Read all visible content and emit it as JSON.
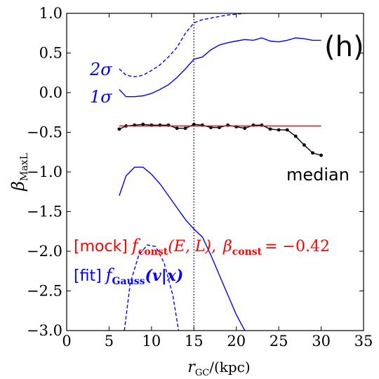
{
  "chart_data": {
    "type": "line",
    "xlabel_main": "r",
    "xlabel_sub": "GC",
    "xlabel_unit": "/(kpc)",
    "ylabel_main": "β",
    "ylabel_sub": "MaxL",
    "xlim": [
      0,
      35
    ],
    "ylim": [
      -3.0,
      1.0
    ],
    "xticks": [
      0,
      5,
      10,
      15,
      20,
      25,
      30,
      35
    ],
    "yticks": [
      1.0,
      0.5,
      0.0,
      -0.5,
      -1.0,
      -1.5,
      -2.0,
      -2.5,
      -3.0
    ],
    "ytick_labels": [
      "1.0",
      "0.5",
      "0.0",
      "−0.5",
      "−1.0",
      "−1.5",
      "−2.0",
      "−2.5",
      "−3.0"
    ],
    "panel_label": "(h)",
    "vline_x": 15,
    "colors": {
      "blue": "#0000ff",
      "red": "#ff0000",
      "black": "#000000"
    },
    "annotations": {
      "two_sigma": "2σ",
      "one_sigma": "1σ",
      "median": "median",
      "mock_tag": "[mock]",
      "mock_f": "f",
      "mock_f_sub": "const",
      "mock_args": "(E, L),",
      "mock_beta": "β",
      "mock_beta_sub": "const",
      "mock_value": "= −0.42",
      "fit_tag": "[fit]",
      "fit_f": "f",
      "fit_f_sub": "Gauss",
      "fit_args": "(v|x)"
    },
    "series": [
      {
        "role": "median",
        "color": "#000000",
        "style": "solid",
        "markers": true,
        "x": [
          6.2,
          7,
          8,
          9,
          10,
          11,
          12,
          13,
          14,
          15,
          16,
          17,
          18,
          19,
          20,
          21,
          22,
          23,
          24,
          25,
          26,
          27,
          28,
          29,
          30
        ],
        "y": [
          -0.46,
          -0.42,
          -0.41,
          -0.4,
          -0.41,
          -0.41,
          -0.41,
          -0.45,
          -0.45,
          -0.4,
          -0.41,
          -0.44,
          -0.44,
          -0.41,
          -0.43,
          -0.45,
          -0.41,
          -0.41,
          -0.46,
          -0.47,
          -0.47,
          -0.55,
          -0.66,
          -0.76,
          -0.79
        ]
      },
      {
        "role": "mock beta",
        "color": "#ff0000",
        "style": "solid",
        "x": [
          6.2,
          30
        ],
        "y": [
          -0.42,
          -0.42
        ]
      },
      {
        "role": "upper 1 sigma",
        "color": "#0000ff",
        "style": "solid",
        "x": [
          6.2,
          7,
          8,
          9,
          10,
          11,
          12,
          13,
          14,
          15,
          16,
          17,
          18,
          19,
          20,
          21,
          22,
          23,
          24,
          25,
          26,
          27,
          28,
          29,
          30
        ],
        "y": [
          0.04,
          -0.05,
          -0.05,
          -0.04,
          -0.01,
          0.04,
          0.1,
          0.19,
          0.3,
          0.42,
          0.45,
          0.54,
          0.6,
          0.63,
          0.65,
          0.67,
          0.66,
          0.69,
          0.65,
          0.64,
          0.66,
          0.69,
          0.68,
          0.66,
          0.66
        ]
      },
      {
        "role": "upper 2 sigma",
        "color": "#0000ff",
        "style": "dashed",
        "x": [
          6.2,
          7,
          8,
          9,
          10,
          11,
          12,
          13,
          14,
          15,
          16,
          17,
          18,
          19,
          20,
          21
        ],
        "y": [
          0.3,
          0.22,
          0.2,
          0.22,
          0.28,
          0.35,
          0.45,
          0.57,
          0.75,
          0.88,
          0.92,
          0.94,
          0.96,
          0.98,
          0.99,
          1.0
        ]
      },
      {
        "role": "lower 1 sigma",
        "color": "#0000ff",
        "style": "solid",
        "x": [
          6.2,
          7,
          8,
          9,
          10,
          11,
          12,
          13,
          14,
          15,
          16,
          17,
          18,
          19,
          20,
          21
        ],
        "y": [
          -1.3,
          -1.05,
          -0.94,
          -0.94,
          -1.03,
          -1.15,
          -1.3,
          -1.45,
          -1.6,
          -1.72,
          -1.82,
          -2.05,
          -2.3,
          -2.55,
          -2.8,
          -3.0
        ]
      },
      {
        "role": "lower 2 sigma",
        "color": "#0000ff",
        "style": "dashed",
        "x": [
          6.8,
          7.5,
          8.5,
          9.5,
          10.5,
          11.5,
          12.5,
          13.2
        ],
        "y": [
          -3.0,
          -2.4,
          -2.05,
          -1.92,
          -1.94,
          -2.15,
          -2.55,
          -3.0
        ]
      }
    ]
  }
}
